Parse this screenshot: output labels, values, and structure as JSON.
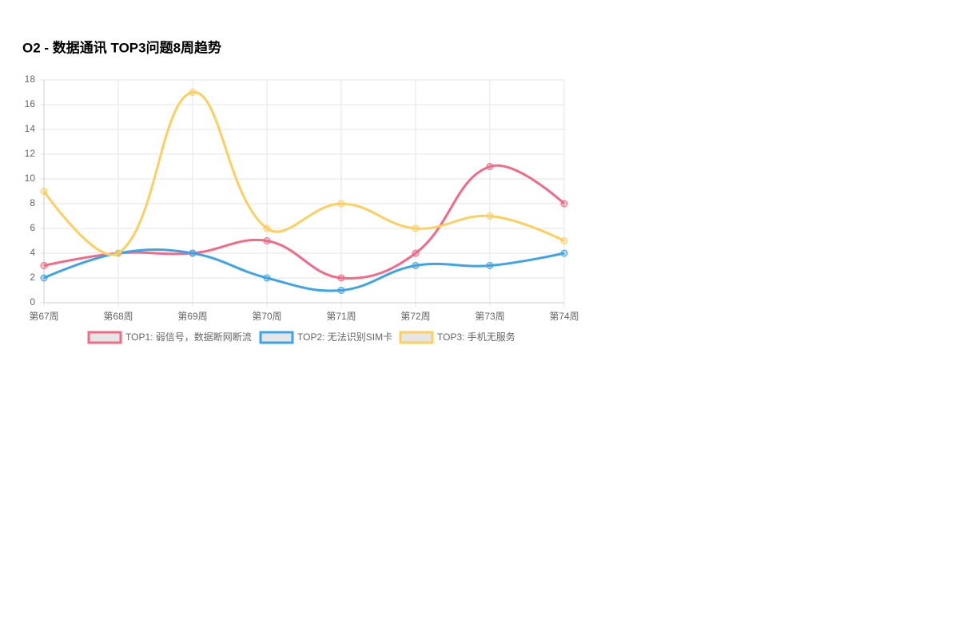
{
  "chart_data": {
    "type": "line",
    "title": "O2 - 数据通讯 TOP3问题8周趋势",
    "categories": [
      "第67周",
      "第68周",
      "第69周",
      "第70周",
      "第71周",
      "第72周",
      "第73周",
      "第74周"
    ],
    "series": [
      {
        "name": "TOP1: 弱信号，数据断网断流",
        "color": "#f16a86",
        "values": [
          3,
          4,
          4,
          5,
          2,
          4,
          11,
          8
        ]
      },
      {
        "name": "TOP2: 无法识别SIM卡",
        "color": "#3fa3e6",
        "values": [
          2,
          4,
          4,
          2,
          1,
          3,
          3,
          4
        ]
      },
      {
        "name": "TOP3: 手机无服务",
        "color": "#fbcf62",
        "values": [
          9,
          4,
          17,
          6,
          8,
          6,
          7,
          5
        ]
      }
    ],
    "ylim": [
      0,
      18
    ],
    "yticks": [
      0,
      2,
      4,
      6,
      8,
      10,
      12,
      14,
      16,
      18
    ],
    "grid": true
  }
}
